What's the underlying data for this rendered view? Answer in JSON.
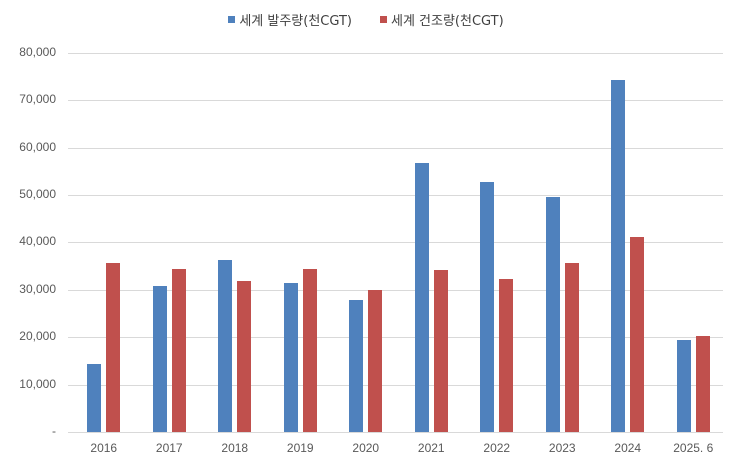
{
  "chart_data": {
    "type": "bar",
    "title": "",
    "xlabel": "",
    "ylabel": "",
    "categories": [
      "2016",
      "2017",
      "2018",
      "2019",
      "2020",
      "2021",
      "2022",
      "2023",
      "2024",
      "2025. 6"
    ],
    "series": [
      {
        "name": "세계 발주량(천CGT)",
        "color": "#4F81BD",
        "values": [
          14300,
          30800,
          36300,
          31500,
          27900,
          56800,
          52700,
          49600,
          74300,
          19400
        ]
      },
      {
        "name": "세계 건조량(천CGT)",
        "color": "#C0504D",
        "values": [
          35600,
          34400,
          31900,
          34400,
          30000,
          34300,
          32200,
          35600,
          41100,
          20200
        ]
      }
    ],
    "ylim": [
      0,
      80000
    ],
    "yticks": [
      0,
      10000,
      20000,
      30000,
      40000,
      50000,
      60000,
      70000,
      80000
    ],
    "ytick_labels": [
      "-",
      "10,000",
      "20,000",
      "30,000",
      "40,000",
      "50,000",
      "60,000",
      "70,000",
      "80,000"
    ],
    "grid": true,
    "legend_position": "top"
  },
  "legend": {
    "items": [
      {
        "label": "세계 발주량(천CGT)",
        "color": "#4F81BD"
      },
      {
        "label": "세계 건조량(천CGT)",
        "color": "#C0504D"
      }
    ]
  }
}
